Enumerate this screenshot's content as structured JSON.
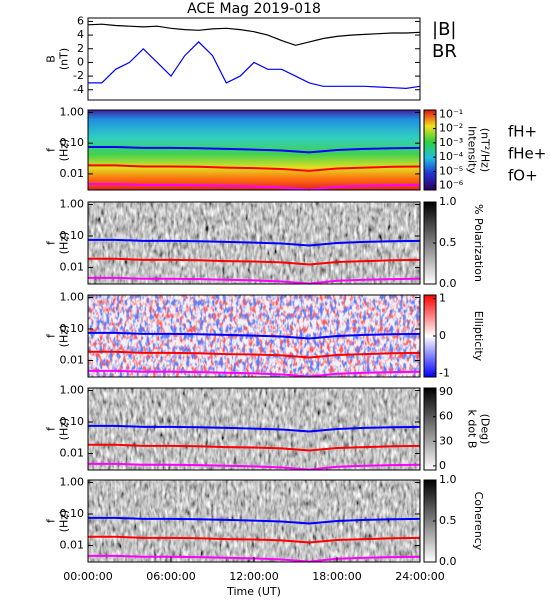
{
  "chart_data": [
    {
      "type": "line",
      "title": "ACE Mag 2019-018",
      "ylabel": [
        "B",
        "(nT)"
      ],
      "x": [
        0,
        1,
        2,
        3,
        4,
        5,
        6,
        7,
        8,
        9,
        10,
        11,
        12,
        13,
        14,
        15,
        16,
        17,
        18,
        19,
        20,
        21,
        22,
        23,
        24
      ],
      "xlim": [
        0,
        24
      ],
      "ylim": [
        -5.5,
        6.5
      ],
      "yticks": [
        -4,
        -2,
        0,
        2,
        4,
        6
      ],
      "legend": "right",
      "series": [
        {
          "name": "|B|",
          "color": "#000000",
          "values": [
            5.5,
            5.6,
            5.4,
            5.3,
            5.2,
            5.3,
            5.0,
            4.8,
            4.7,
            4.9,
            5.0,
            4.8,
            4.5,
            4.0,
            3.2,
            2.5,
            3.0,
            3.5,
            3.8,
            4.0,
            4.1,
            4.2,
            4.3,
            4.3,
            4.4
          ]
        },
        {
          "name": "BR",
          "color": "#0000ff",
          "values": [
            -3,
            -3,
            -1,
            0,
            2,
            0,
            -2,
            1,
            3,
            1,
            -3,
            -2,
            0,
            -1,
            -1,
            -2,
            -3,
            -3.5,
            -3.5,
            -3.5,
            -3.5,
            -3.6,
            -3.7,
            -3.8,
            -3.5
          ]
        }
      ]
    },
    {
      "type": "spectrogram",
      "ylabel": [
        "f",
        "(Hz)"
      ],
      "log": true,
      "colormap": "rainbow",
      "legend": "right",
      "x": [
        0,
        2,
        4,
        6,
        8,
        10,
        12,
        14,
        16,
        18,
        20,
        22,
        24
      ],
      "xlim": [
        0,
        24
      ],
      "ylim": [
        0.003,
        1.2
      ],
      "yticks": [
        {
          "value": 1,
          "label": "1.00"
        },
        {
          "value": 0.1,
          "label": "0.10"
        },
        0.01
      ],
      "colorbar_label": [
        "Intensity",
        "(nT²/Hz)"
      ],
      "clog": true,
      "clim": [
        5e-07,
        0.2
      ],
      "cticks": [
        {
          "value": 0.1,
          "label": "10⁻¹"
        },
        {
          "value": 0.01,
          "label": "10⁻²"
        },
        {
          "value": 0.001,
          "label": "10⁻³"
        },
        {
          "value": 0.0001,
          "label": "10⁻⁴"
        },
        {
          "value": 1e-05,
          "label": "10⁻⁵"
        },
        {
          "value": 1e-06,
          "label": "10⁻⁶"
        }
      ],
      "series": [
        {
          "name": "fH+",
          "color": "#0000ff",
          "values": [
            0.075,
            0.075,
            0.07,
            0.07,
            0.068,
            0.065,
            0.062,
            0.058,
            0.05,
            0.06,
            0.065,
            0.068,
            0.07
          ]
        },
        {
          "name": "fHe+",
          "color": "#ff0000",
          "values": [
            0.019,
            0.019,
            0.0175,
            0.0175,
            0.017,
            0.016,
            0.0155,
            0.0145,
            0.0125,
            0.015,
            0.016,
            0.017,
            0.0175
          ]
        },
        {
          "name": "fO+",
          "color": "#ff00ff",
          "values": [
            0.0047,
            0.0047,
            0.0044,
            0.0044,
            0.0043,
            0.0041,
            0.0039,
            0.0036,
            0.0031,
            0.0038,
            0.0041,
            0.0043,
            0.0044
          ]
        }
      ]
    },
    {
      "type": "spectrogram",
      "ylabel": [
        "f",
        "(Hz)"
      ],
      "log": true,
      "colormap": "gray_r",
      "x": [
        0,
        2,
        4,
        6,
        8,
        10,
        12,
        14,
        16,
        18,
        20,
        22,
        24
      ],
      "xlim": [
        0,
        24
      ],
      "ylim": [
        0.003,
        1.2
      ],
      "yticks": [
        {
          "value": 1,
          "label": "1.00"
        },
        {
          "value": 0.1,
          "label": "0.10"
        },
        0.01
      ],
      "colorbar_label": [
        "% Polarization"
      ],
      "clim": [
        0,
        1
      ],
      "cticks": [
        {
          "value": 0,
          "label": "0.0"
        },
        0.5,
        {
          "value": 1,
          "label": "1.0"
        }
      ],
      "series": [
        {
          "color": "#0000ff",
          "values": [
            0.075,
            0.075,
            0.07,
            0.07,
            0.068,
            0.065,
            0.062,
            0.058,
            0.05,
            0.06,
            0.065,
            0.068,
            0.07
          ]
        },
        {
          "color": "#ff0000",
          "values": [
            0.019,
            0.019,
            0.0175,
            0.0175,
            0.017,
            0.016,
            0.0155,
            0.0145,
            0.0125,
            0.015,
            0.016,
            0.017,
            0.0175
          ]
        },
        {
          "color": "#ff00ff",
          "values": [
            0.0047,
            0.0047,
            0.0044,
            0.0044,
            0.0043,
            0.0041,
            0.0039,
            0.0036,
            0.0031,
            0.0038,
            0.0041,
            0.0043,
            0.0044
          ]
        }
      ]
    },
    {
      "type": "spectrogram",
      "ylabel": [
        "f",
        "(Hz)"
      ],
      "log": true,
      "colormap": "bwr",
      "x": [
        0,
        2,
        4,
        6,
        8,
        10,
        12,
        14,
        16,
        18,
        20,
        22,
        24
      ],
      "xlim": [
        0,
        24
      ],
      "ylim": [
        0.003,
        1.2
      ],
      "yticks": [
        {
          "value": 1,
          "label": "1.00"
        },
        {
          "value": 0.1,
          "label": "0.10"
        },
        0.01
      ],
      "colorbar_label": [
        "Ellipticity"
      ],
      "clim": [
        -1.1,
        1.1
      ],
      "cticks": [
        1,
        0,
        -1
      ],
      "series": [
        {
          "color": "#0000ff",
          "values": [
            0.075,
            0.075,
            0.07,
            0.07,
            0.068,
            0.065,
            0.062,
            0.058,
            0.05,
            0.06,
            0.065,
            0.068,
            0.07
          ]
        },
        {
          "color": "#ff0000",
          "values": [
            0.019,
            0.019,
            0.0175,
            0.0175,
            0.017,
            0.016,
            0.0155,
            0.0145,
            0.0125,
            0.015,
            0.016,
            0.017,
            0.0175
          ]
        },
        {
          "color": "#ff00ff",
          "values": [
            0.0047,
            0.0047,
            0.0044,
            0.0044,
            0.0043,
            0.0041,
            0.0039,
            0.0036,
            0.0031,
            0.0038,
            0.0041,
            0.0043,
            0.0044
          ]
        }
      ]
    },
    {
      "type": "spectrogram",
      "ylabel": [
        "f",
        "(Hz)"
      ],
      "log": true,
      "colormap": "gray_r",
      "x": [
        0,
        2,
        4,
        6,
        8,
        10,
        12,
        14,
        16,
        18,
        20,
        22,
        24
      ],
      "xlim": [
        0,
        24
      ],
      "ylim": [
        0.003,
        1.2
      ],
      "yticks": [
        {
          "value": 1,
          "label": "1.00"
        },
        {
          "value": 0.1,
          "label": "0.10"
        },
        0.01
      ],
      "colorbar_label": [
        "k dot B",
        "(Deg)"
      ],
      "clim": [
        -5,
        95
      ],
      "cticks": [
        90,
        60,
        30,
        0
      ],
      "series": [
        {
          "color": "#0000ff",
          "values": [
            0.075,
            0.075,
            0.07,
            0.07,
            0.068,
            0.065,
            0.062,
            0.058,
            0.05,
            0.06,
            0.065,
            0.068,
            0.07
          ]
        },
        {
          "color": "#ff0000",
          "values": [
            0.019,
            0.019,
            0.0175,
            0.0175,
            0.017,
            0.016,
            0.0155,
            0.0145,
            0.0125,
            0.015,
            0.016,
            0.017,
            0.0175
          ]
        },
        {
          "color": "#ff00ff",
          "values": [
            0.0047,
            0.0047,
            0.0044,
            0.0044,
            0.0043,
            0.0041,
            0.0039,
            0.0036,
            0.0031,
            0.0038,
            0.0041,
            0.0043,
            0.0044
          ]
        }
      ]
    },
    {
      "type": "spectrogram",
      "ylabel": [
        "f",
        "(Hz)"
      ],
      "log": true,
      "colormap": "gray_r",
      "x": [
        0,
        2,
        4,
        6,
        8,
        10,
        12,
        14,
        16,
        18,
        20,
        22,
        24
      ],
      "xlim": [
        0,
        24
      ],
      "ylim": [
        0.003,
        1.2
      ],
      "yticks": [
        {
          "value": 1,
          "label": "1.00"
        },
        {
          "value": 0.1,
          "label": "0.10"
        },
        0.01
      ],
      "colorbar_label": [
        "Coherency"
      ],
      "clim": [
        0,
        1
      ],
      "cticks": [
        {
          "value": 0,
          "label": "0.0"
        },
        0.5,
        {
          "value": 1,
          "label": "1.0"
        }
      ],
      "xlabel": "Time (UT)",
      "xticks": [
        {
          "value": 0,
          "label": "00:00:00"
        },
        {
          "value": 6,
          "label": "06:00:00"
        },
        {
          "value": 12,
          "label": "12:00:00"
        },
        {
          "value": 18,
          "label": "18:00:00"
        },
        {
          "value": 24,
          "label": "24:00:00"
        }
      ],
      "series": [
        {
          "color": "#0000ff",
          "values": [
            0.075,
            0.075,
            0.07,
            0.07,
            0.068,
            0.065,
            0.062,
            0.058,
            0.05,
            0.06,
            0.065,
            0.068,
            0.07
          ]
        },
        {
          "color": "#ff0000",
          "values": [
            0.019,
            0.019,
            0.0175,
            0.0175,
            0.017,
            0.016,
            0.0155,
            0.0145,
            0.0125,
            0.015,
            0.016,
            0.017,
            0.0175
          ]
        },
        {
          "color": "#ff00ff",
          "values": [
            0.0047,
            0.0047,
            0.0044,
            0.0044,
            0.0043,
            0.0041,
            0.0039,
            0.0036,
            0.0031,
            0.0038,
            0.0041,
            0.0043,
            0.0044
          ]
        }
      ]
    }
  ]
}
